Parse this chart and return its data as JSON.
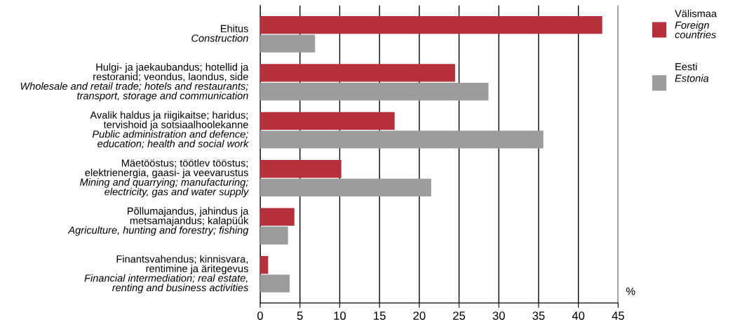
{
  "chart_data": {
    "type": "bar",
    "orientation": "horizontal",
    "categories": [
      "Ehitus\nConstruction",
      "Hulgi- ja jaekaubandus; hotellid ja\nrestoranid; veondus, laondus, side\nWholesale and retail trade; hotels and restaurants;\ntransport, storage and communication",
      "Avalik haldus ja riigikaitse; haridus;\ntervishoid ja sotsiaalhoolekanne\nPublic administration and defence;\neducation; health and social work",
      "Mäetööstus; töötlev tööstus;\nelektrienergia, gaasi- ja veevarustus\nMining and quarrying; manufacturing;\nelectricity, gas and water supply",
      "Põllumajandus, jahindus ja\nmetsamajandus; kalapüük\nAgriculture, hunting and forestry; fishing",
      "Finantsvahendus; kinnisvara,\nrentimine ja äritegevus\nFinancial intermediation; real estate,\nrenting and business activities"
    ],
    "series": [
      {
        "name": "Välismaa\nForeign\ncountries",
        "color": "#b5303a",
        "values": [
          43.0,
          24.5,
          16.9,
          10.2,
          4.3,
          1.0
        ]
      },
      {
        "name": "Eesti\nEstonia",
        "color": "#9c9c9c",
        "values": [
          6.9,
          28.7,
          35.6,
          21.5,
          3.5,
          3.7
        ]
      }
    ],
    "xlabel": "%",
    "xlim": [
      0,
      45
    ],
    "xticks": [
      0,
      5,
      10,
      15,
      20,
      25,
      30,
      35,
      40,
      45
    ],
    "grid": "x",
    "legend": "top right"
  }
}
